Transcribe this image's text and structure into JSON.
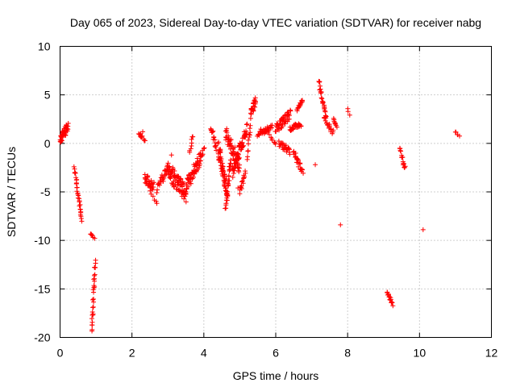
{
  "chart_data": {
    "type": "scatter",
    "title": "Day 065 of 2023, Sidereal Day-to-day VTEC variation (SDTVAR) for receiver nabg",
    "xlabel": "GPS time / hours",
    "ylabel": "SDTVAR / TECUs",
    "xlim": [
      0,
      12
    ],
    "ylim": [
      -20,
      10
    ],
    "xticks": [
      0,
      2,
      4,
      6,
      8,
      10,
      12
    ],
    "yticks": [
      -20,
      -15,
      -10,
      -5,
      0,
      5,
      10
    ],
    "xtick_labels": [
      "0",
      "2",
      "4",
      "6",
      "8",
      "10",
      "12"
    ],
    "ytick_labels": [
      "-20",
      "-15",
      "-10",
      "-5",
      "0",
      "5",
      "10"
    ],
    "grid": true,
    "marker": "+",
    "color": "#ff0000",
    "series": [
      {
        "name": "SDTVAR",
        "segments": [
          {
            "x0": 0.0,
            "x1": 0.22,
            "y0": 0.3,
            "y1": 1.8,
            "n": 45,
            "spread": 0.9
          },
          {
            "x0": 0.4,
            "x1": 0.6,
            "y0": -2.5,
            "y1": -8.0,
            "n": 30,
            "spread": 0.4
          },
          {
            "x0": 0.88,
            "x1": 0.98,
            "y0": -19.5,
            "y1": -12.0,
            "n": 30,
            "spread": 0.6
          },
          {
            "x0": 0.85,
            "x1": 0.95,
            "y0": -9.4,
            "y1": -9.8,
            "n": 6,
            "spread": 0.3
          },
          {
            "x0": 2.2,
            "x1": 2.35,
            "y0": 1.0,
            "y1": 0.4,
            "n": 10,
            "spread": 0.4
          },
          {
            "x0": 2.35,
            "x1": 2.6,
            "y0": -3.5,
            "y1": -4.5,
            "n": 30,
            "spread": 1.0
          },
          {
            "x0": 2.5,
            "x1": 2.7,
            "y0": -5.0,
            "y1": -6.2,
            "n": 6,
            "spread": 0.3
          },
          {
            "x0": 2.7,
            "x1": 3.0,
            "y0": -4.8,
            "y1": -2.5,
            "n": 25,
            "spread": 0.8
          },
          {
            "x0": 3.0,
            "x1": 3.5,
            "y0": -2.8,
            "y1": -5.2,
            "n": 80,
            "spread": 1.8
          },
          {
            "x0": 3.5,
            "x1": 3.9,
            "y0": -4.5,
            "y1": -1.5,
            "n": 55,
            "spread": 1.4
          },
          {
            "x0": 3.6,
            "x1": 3.7,
            "y0": -1.0,
            "y1": 0.8,
            "n": 8,
            "spread": 0.3
          },
          {
            "x0": 3.9,
            "x1": 4.0,
            "y0": -1.5,
            "y1": -0.5,
            "n": 8,
            "spread": 0.4
          },
          {
            "x0": 4.2,
            "x1": 4.35,
            "y0": 1.8,
            "y1": -0.5,
            "n": 15,
            "spread": 0.6
          },
          {
            "x0": 4.4,
            "x1": 4.65,
            "y0": -0.5,
            "y1": -5.0,
            "n": 60,
            "spread": 1.6
          },
          {
            "x0": 4.6,
            "x1": 4.75,
            "y0": -6.5,
            "y1": -2.0,
            "n": 30,
            "spread": 1.3
          },
          {
            "x0": 4.6,
            "x1": 5.0,
            "y0": 1.2,
            "y1": -2.5,
            "n": 55,
            "spread": 1.5
          },
          {
            "x0": 4.8,
            "x1": 5.2,
            "y0": -3.0,
            "y1": 1.5,
            "n": 60,
            "spread": 1.5
          },
          {
            "x0": 5.0,
            "x1": 5.15,
            "y0": -5.0,
            "y1": -3.0,
            "n": 15,
            "spread": 0.6
          },
          {
            "x0": 5.2,
            "x1": 5.3,
            "y0": -1.5,
            "y1": 2.0,
            "n": 12,
            "spread": 0.5
          },
          {
            "x0": 5.3,
            "x1": 5.45,
            "y0": 3.0,
            "y1": 4.5,
            "n": 25,
            "spread": 0.9
          },
          {
            "x0": 5.5,
            "x1": 5.9,
            "y0": 1.0,
            "y1": 1.8,
            "n": 35,
            "spread": 0.7
          },
          {
            "x0": 5.8,
            "x1": 6.0,
            "y0": 1.0,
            "y1": 0.0,
            "n": 8,
            "spread": 0.4
          },
          {
            "x0": 6.0,
            "x1": 6.4,
            "y0": 1.5,
            "y1": 3.0,
            "n": 50,
            "spread": 1.0
          },
          {
            "x0": 6.1,
            "x1": 6.4,
            "y0": 0.0,
            "y1": -0.8,
            "n": 25,
            "spread": 0.7
          },
          {
            "x0": 6.4,
            "x1": 6.7,
            "y0": 1.5,
            "y1": 2.0,
            "n": 30,
            "spread": 0.5
          },
          {
            "x0": 6.5,
            "x1": 6.75,
            "y0": -0.8,
            "y1": -3.0,
            "n": 25,
            "spread": 0.7
          },
          {
            "x0": 6.6,
            "x1": 6.75,
            "y0": 3.5,
            "y1": 4.5,
            "n": 15,
            "spread": 0.5
          },
          {
            "x0": 7.2,
            "x1": 7.4,
            "y0": 6.5,
            "y1": 2.5,
            "n": 25,
            "spread": 0.7
          },
          {
            "x0": 7.35,
            "x1": 7.6,
            "y0": 2.5,
            "y1": 1.0,
            "n": 18,
            "spread": 0.6
          },
          {
            "x0": 7.6,
            "x1": 7.7,
            "y0": 2.5,
            "y1": 1.8,
            "n": 8,
            "spread": 0.3
          },
          {
            "x0": 8.0,
            "x1": 8.05,
            "y0": 3.6,
            "y1": 3.0,
            "n": 3,
            "spread": 0.2
          },
          {
            "x0": 9.1,
            "x1": 9.25,
            "y0": -15.3,
            "y1": -16.6,
            "n": 15,
            "spread": 0.3
          },
          {
            "x0": 9.45,
            "x1": 9.6,
            "y0": -0.5,
            "y1": -2.7,
            "n": 15,
            "spread": 0.4
          },
          {
            "x0": 11.0,
            "x1": 11.1,
            "y0": 1.2,
            "y1": 0.7,
            "n": 5,
            "spread": 0.2
          }
        ],
        "points": [
          [
            7.1,
            -2.2
          ],
          [
            7.8,
            -8.4
          ],
          [
            10.1,
            -8.9
          ],
          [
            4.95,
            -4.6
          ],
          [
            3.1,
            -1.2
          ],
          [
            2.3,
            1.2
          ]
        ]
      }
    ]
  }
}
